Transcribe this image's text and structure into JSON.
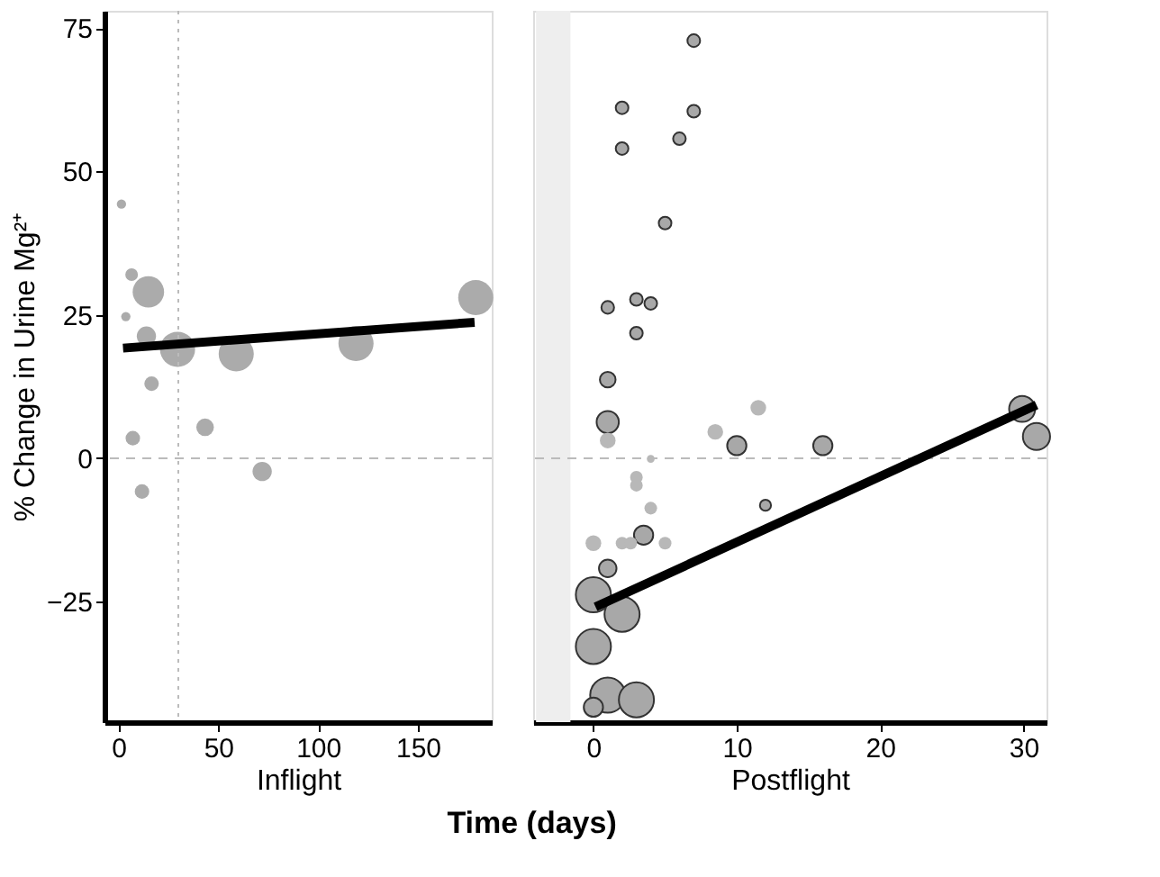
{
  "chart_data": [
    {
      "type": "scatter",
      "xlabel": "Inflight",
      "ylabel": "% Change in Urine Mg²⁺",
      "xlim": [
        -7,
        187
      ],
      "xticks": [
        0,
        50,
        100,
        150
      ],
      "ylim": [
        -46,
        78
      ],
      "yticks": [
        -25,
        0,
        25,
        50,
        75
      ],
      "grid": false,
      "ref_lines": [
        {
          "axis": "x",
          "value": 30,
          "color": "#bbbbbb",
          "line_style": "dotted"
        },
        {
          "axis": "y",
          "value": 0,
          "color": "#bbbbbb",
          "line_style": "dashed"
        }
      ],
      "series": [
        {
          "marker": "circle",
          "color": "#ababab",
          "x": [
            1.5,
            6.6,
            15,
            3.7,
            14,
            29.6,
            59,
            119,
            179,
            16.6,
            43.4,
            7.2,
            72,
            11.8
          ],
          "values": [
            44.3,
            32,
            29,
            24.7,
            21.3,
            19,
            18.2,
            20,
            28,
            13,
            5.4,
            3.5,
            -2.3,
            -5.8
          ],
          "sizes": [
            0.07,
            0.13,
            0.8,
            0.07,
            0.3,
            1,
            1,
            1,
            1,
            0.17,
            0.25,
            0.17,
            0.3,
            0.17
          ]
        },
        {
          "type": "line",
          "color": "#000000",
          "line_style": "solid",
          "x": [
            2.3,
            178.4
          ],
          "values": [
            19.2,
            23.7
          ]
        }
      ]
    },
    {
      "type": "scatter",
      "xlabel": "Postflight",
      "xlim": [
        -4.2,
        31.6
      ],
      "xticks": [
        0,
        10,
        20,
        30
      ],
      "ylim": [
        -46,
        78
      ],
      "tick_labels": "x",
      "grid": false,
      "annotations": [
        "Time (days)"
      ],
      "bands": [
        {
          "axis": "x",
          "from": -4,
          "to": -1.6,
          "color": "#eeeeee"
        }
      ],
      "ref_lines": [
        {
          "axis": "y",
          "value": 0,
          "color": "#bbbbbb",
          "line_style": "dashed"
        }
      ],
      "series": [
        {
          "marker": "circle",
          "color": "#a8a8a8",
          "x": [
            7,
            2,
            7,
            6,
            2,
            5,
            1,
            3,
            4,
            3,
            1,
            1,
            29.9,
            10,
            16,
            30.9,
            12,
            3.5,
            1,
            0,
            2,
            0,
            1,
            3,
            0
          ],
          "values": [
            72.8,
            61.1,
            60.5,
            55.7,
            54,
            41,
            26.3,
            27.7,
            27,
            21.8,
            13.7,
            6.3,
            8.6,
            2.2,
            2.2,
            3.8,
            -8.2,
            -13.4,
            -19.2,
            -23.8,
            -27.2,
            -32.8,
            -41.3,
            -42.1,
            -43.4
          ],
          "sizes": [
            0.13,
            0.13,
            0.13,
            0.13,
            0.13,
            0.13,
            0.13,
            0.13,
            0.13,
            0.13,
            0.2,
            0.4,
            0.55,
            0.3,
            0.3,
            0.6,
            0.1,
            0.3,
            0.25,
            1,
            1,
            1,
            1,
            1,
            0.3
          ]
        },
        {
          "marker": "circle",
          "color": "#b8b8b8",
          "x": [
            11.5,
            8.5,
            1,
            4,
            3,
            3,
            4,
            0,
            2,
            2.6,
            5
          ],
          "values": [
            8.8,
            4.6,
            3.1,
            -0.1,
            -3.3,
            -4.7,
            -8.7,
            -14.8,
            -14.8,
            -14.8,
            -14.8
          ],
          "sizes": [
            0.2,
            0.2,
            0.2,
            0.05,
            0.13,
            0.13,
            0.13,
            0.2,
            0.13,
            0.13,
            0.13
          ]
        },
        {
          "type": "line",
          "color": "#000000",
          "line_style": "solid",
          "x": [
            0.15,
            30.9
          ],
          "values": [
            -25.9,
            9.3
          ]
        }
      ]
    }
  ]
}
